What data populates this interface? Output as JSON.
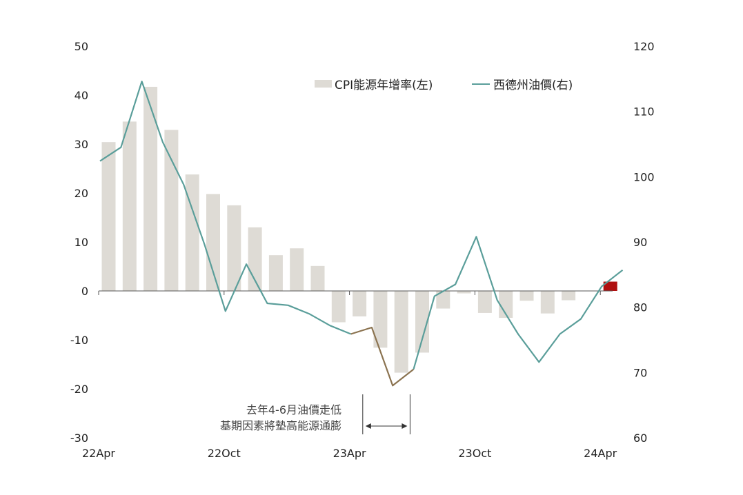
{
  "chart_data": {
    "type": "bar",
    "x_ticks": [
      "22Apr",
      "22Oct",
      "23Apr",
      "23Oct",
      "24Apr"
    ],
    "left_axis": {
      "ylim": [
        -30,
        50
      ],
      "ticks": [
        50,
        40,
        30,
        20,
        10,
        0,
        -10,
        -20,
        -30
      ]
    },
    "right_axis": {
      "ylim": [
        60,
        120
      ],
      "ticks": [
        120,
        110,
        100,
        90,
        80,
        70,
        60
      ]
    },
    "series": [
      {
        "name": "CPI能源年增率(左)",
        "type": "bar",
        "axis": "left",
        "color": "#dedbd5",
        "highlight_color": "#b01010",
        "highlight_index": 24,
        "values": [
          30.4,
          34.6,
          41.7,
          32.9,
          23.8,
          19.8,
          17.5,
          13.0,
          7.3,
          8.7,
          5.1,
          -6.4,
          -5.2,
          -11.6,
          -16.7,
          -12.6,
          -3.6,
          -0.5,
          -4.5,
          -5.5,
          -2.0,
          -4.6,
          -1.9,
          0,
          1.9
        ]
      },
      {
        "name": "西德州油價(右)",
        "type": "line",
        "axis": "right",
        "color": "#5a9e9a",
        "highlight_color": "#8b7350",
        "highlight_range": [
          12,
          15
        ],
        "values": [
          102.4,
          104.5,
          114.6,
          105.3,
          98.8,
          89.6,
          79.4,
          86.6,
          80.6,
          80.3,
          79.0,
          77.2,
          75.9,
          76.9,
          68.0,
          70.5,
          81.7,
          83.5,
          90.8,
          81.1,
          75.9,
          71.6,
          75.9,
          78.2,
          83.2,
          85.7
        ]
      }
    ],
    "annotation": {
      "lines": [
        "去年4-6月油價走低",
        "基期因素將墊高能源通膨"
      ],
      "arrow_from_index": 12.7,
      "arrow_to_index": 14.7
    }
  }
}
